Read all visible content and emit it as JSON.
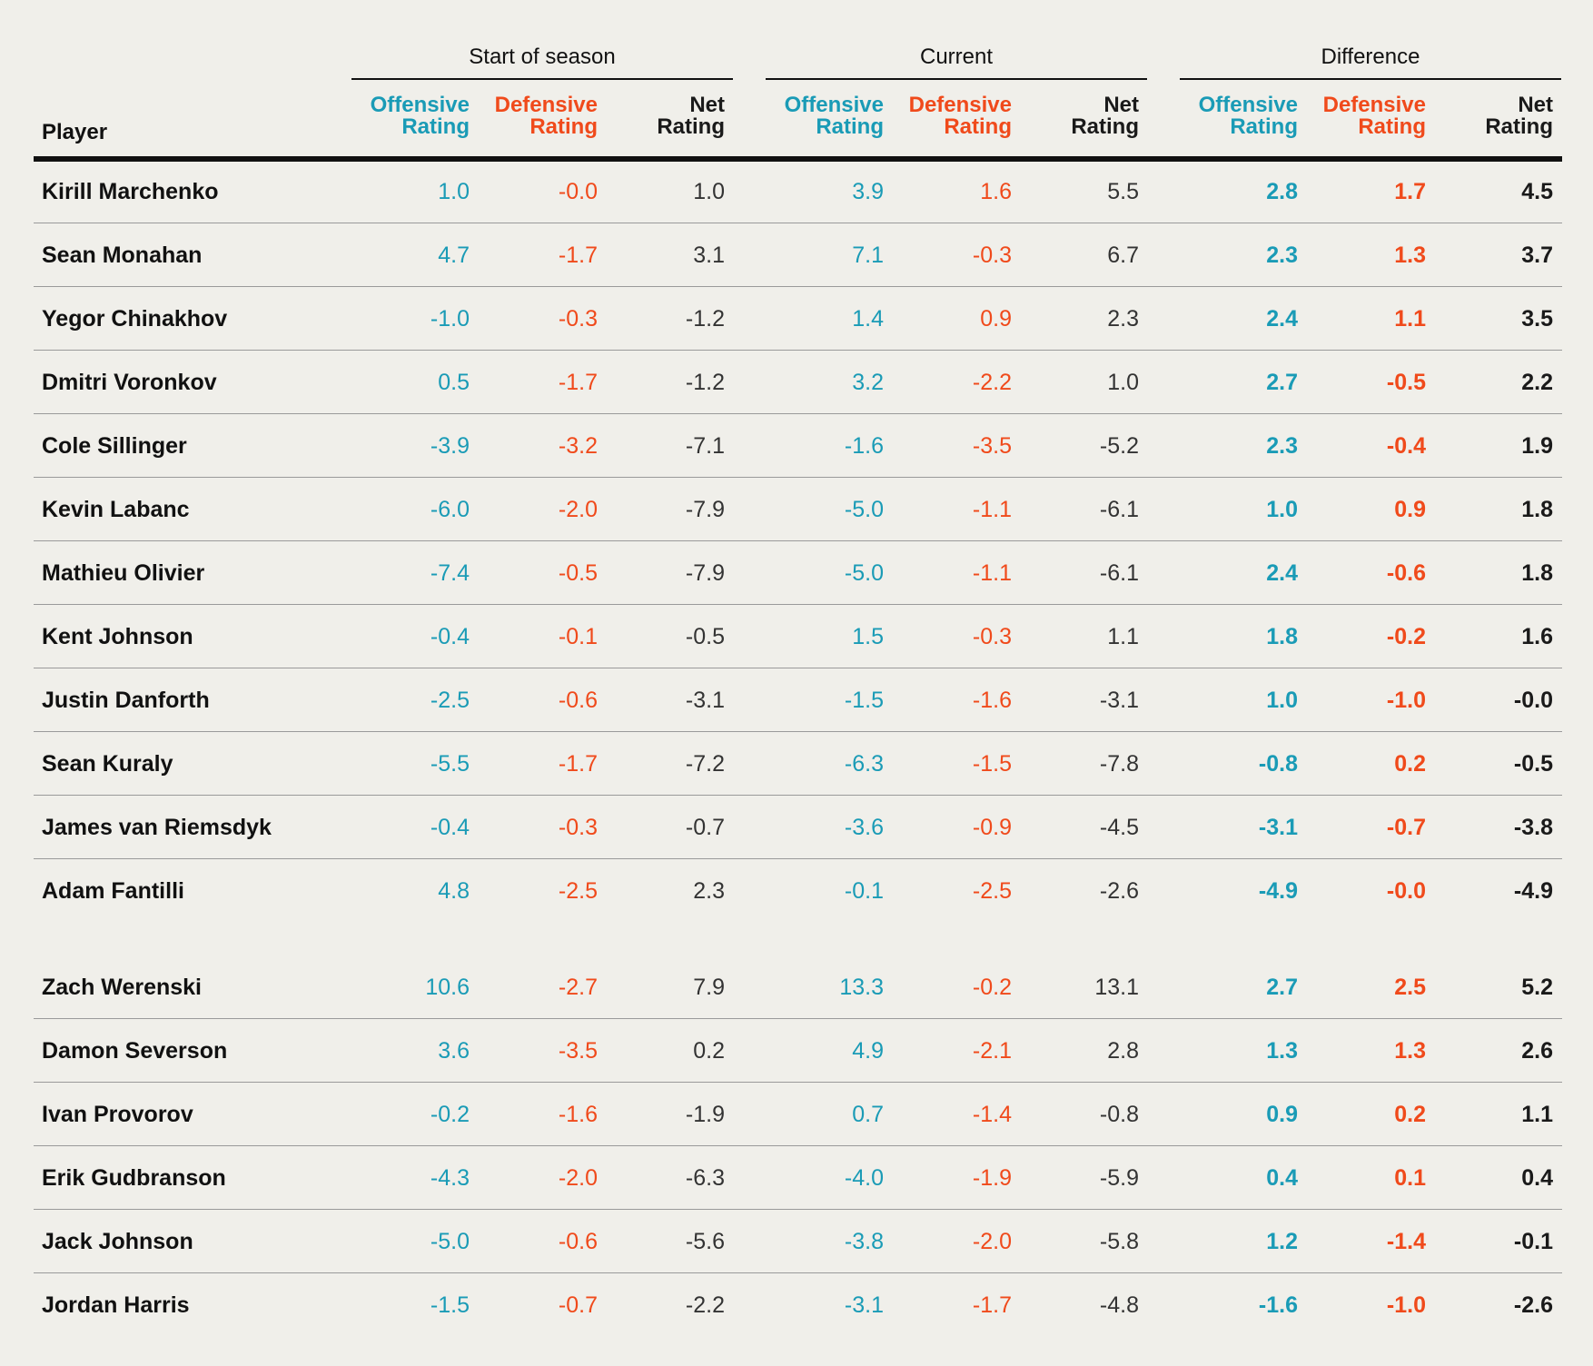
{
  "header": {
    "groups": [
      "Start of season",
      "Current",
      "Difference"
    ],
    "player_label": "Player",
    "col_labels": [
      [
        "Offensive",
        "Rating"
      ],
      [
        "Defensive",
        "Rating"
      ],
      [
        "Net",
        "Rating"
      ]
    ]
  },
  "colors": {
    "offensive": "#1a9bb6",
    "defensive": "#f04a1b",
    "net": "#1a1a1a"
  },
  "forwards": [
    {
      "player": "Kirill Marchenko",
      "start": [
        "1.0",
        "-0.0",
        "1.0"
      ],
      "current": [
        "3.9",
        "1.6",
        "5.5"
      ],
      "diff": [
        "2.8",
        "1.7",
        "4.5"
      ]
    },
    {
      "player": "Sean Monahan",
      "start": [
        "4.7",
        "-1.7",
        "3.1"
      ],
      "current": [
        "7.1",
        "-0.3",
        "6.7"
      ],
      "diff": [
        "2.3",
        "1.3",
        "3.7"
      ]
    },
    {
      "player": "Yegor Chinakhov",
      "start": [
        "-1.0",
        "-0.3",
        "-1.2"
      ],
      "current": [
        "1.4",
        "0.9",
        "2.3"
      ],
      "diff": [
        "2.4",
        "1.1",
        "3.5"
      ]
    },
    {
      "player": "Dmitri Voronkov",
      "start": [
        "0.5",
        "-1.7",
        "-1.2"
      ],
      "current": [
        "3.2",
        "-2.2",
        "1.0"
      ],
      "diff": [
        "2.7",
        "-0.5",
        "2.2"
      ]
    },
    {
      "player": "Cole Sillinger",
      "start": [
        "-3.9",
        "-3.2",
        "-7.1"
      ],
      "current": [
        "-1.6",
        "-3.5",
        "-5.2"
      ],
      "diff": [
        "2.3",
        "-0.4",
        "1.9"
      ]
    },
    {
      "player": "Kevin Labanc",
      "start": [
        "-6.0",
        "-2.0",
        "-7.9"
      ],
      "current": [
        "-5.0",
        "-1.1",
        "-6.1"
      ],
      "diff": [
        "1.0",
        "0.9",
        "1.8"
      ]
    },
    {
      "player": "Mathieu Olivier",
      "start": [
        "-7.4",
        "-0.5",
        "-7.9"
      ],
      "current": [
        "-5.0",
        "-1.1",
        "-6.1"
      ],
      "diff": [
        "2.4",
        "-0.6",
        "1.8"
      ]
    },
    {
      "player": "Kent Johnson",
      "start": [
        "-0.4",
        "-0.1",
        "-0.5"
      ],
      "current": [
        "1.5",
        "-0.3",
        "1.1"
      ],
      "diff": [
        "1.8",
        "-0.2",
        "1.6"
      ]
    },
    {
      "player": "Justin Danforth",
      "start": [
        "-2.5",
        "-0.6",
        "-3.1"
      ],
      "current": [
        "-1.5",
        "-1.6",
        "-3.1"
      ],
      "diff": [
        "1.0",
        "-1.0",
        "-0.0"
      ]
    },
    {
      "player": "Sean Kuraly",
      "start": [
        "-5.5",
        "-1.7",
        "-7.2"
      ],
      "current": [
        "-6.3",
        "-1.5",
        "-7.8"
      ],
      "diff": [
        "-0.8",
        "0.2",
        "-0.5"
      ]
    },
    {
      "player": "James van Riemsdyk",
      "start": [
        "-0.4",
        "-0.3",
        "-0.7"
      ],
      "current": [
        "-3.6",
        "-0.9",
        "-4.5"
      ],
      "diff": [
        "-3.1",
        "-0.7",
        "-3.8"
      ]
    },
    {
      "player": "Adam Fantilli",
      "start": [
        "4.8",
        "-2.5",
        "2.3"
      ],
      "current": [
        "-0.1",
        "-2.5",
        "-2.6"
      ],
      "diff": [
        "-4.9",
        "-0.0",
        "-4.9"
      ]
    }
  ],
  "defensemen": [
    {
      "player": "Zach Werenski",
      "start": [
        "10.6",
        "-2.7",
        "7.9"
      ],
      "current": [
        "13.3",
        "-0.2",
        "13.1"
      ],
      "diff": [
        "2.7",
        "2.5",
        "5.2"
      ]
    },
    {
      "player": "Damon Severson",
      "start": [
        "3.6",
        "-3.5",
        "0.2"
      ],
      "current": [
        "4.9",
        "-2.1",
        "2.8"
      ],
      "diff": [
        "1.3",
        "1.3",
        "2.6"
      ]
    },
    {
      "player": "Ivan Provorov",
      "start": [
        "-0.2",
        "-1.6",
        "-1.9"
      ],
      "current": [
        "0.7",
        "-1.4",
        "-0.8"
      ],
      "diff": [
        "0.9",
        "0.2",
        "1.1"
      ]
    },
    {
      "player": "Erik Gudbranson",
      "start": [
        "-4.3",
        "-2.0",
        "-6.3"
      ],
      "current": [
        "-4.0",
        "-1.9",
        "-5.9"
      ],
      "diff": [
        "0.4",
        "0.1",
        "0.4"
      ]
    },
    {
      "player": "Jack Johnson",
      "start": [
        "-5.0",
        "-0.6",
        "-5.6"
      ],
      "current": [
        "-3.8",
        "-2.0",
        "-5.8"
      ],
      "diff": [
        "1.2",
        "-1.4",
        "-0.1"
      ]
    },
    {
      "player": "Jordan Harris",
      "start": [
        "-1.5",
        "-0.7",
        "-2.2"
      ],
      "current": [
        "-3.1",
        "-1.7",
        "-4.8"
      ],
      "diff": [
        "-1.6",
        "-1.0",
        "-2.6"
      ]
    }
  ]
}
